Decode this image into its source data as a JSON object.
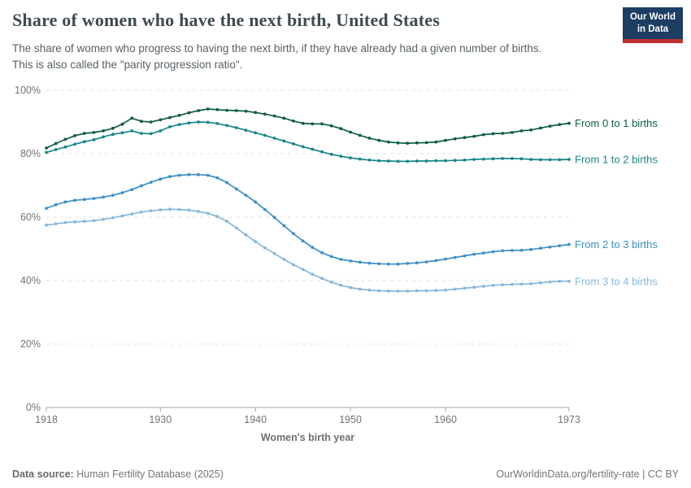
{
  "header": {
    "title": "Share of women who have the next birth, United States",
    "subtitle": "The share of women who progress to having the next birth, if they have already had a given number of births.\nThis is also called the \"parity progression ratio\".",
    "logo_line1": "Our World",
    "logo_line2": "in Data"
  },
  "colors": {
    "logo_bg": "#1d3d63",
    "logo_stripe": "#c2302e",
    "gridline": "#e0e0e0",
    "axis": "#a5a5a5",
    "tick_text": "#737373",
    "axis_title_text": "#6f6f6f"
  },
  "footer": {
    "datasource_label": "Data source:",
    "datasource_value": "Human Fertility Database (2025)",
    "credit": "OurWorldinData.org/fertility-rate | CC BY"
  },
  "chart_data": {
    "type": "line",
    "title": "Share of women who have the next birth, United States",
    "xlabel": "Women's birth year",
    "ylabel": "",
    "xlim": [
      1918,
      1973
    ],
    "ylim": [
      0,
      100
    ],
    "grid": "horizontal-dashed",
    "legend_position": "end-of-line-labels",
    "x_ticks": [
      1918,
      1930,
      1940,
      1950,
      1960,
      1973
    ],
    "y_ticks": [
      0,
      20,
      40,
      60,
      80,
      100
    ],
    "y_tick_suffix": "%",
    "x": [
      1918,
      1919,
      1920,
      1921,
      1922,
      1923,
      1924,
      1925,
      1926,
      1927,
      1928,
      1929,
      1930,
      1931,
      1932,
      1933,
      1934,
      1935,
      1936,
      1937,
      1938,
      1939,
      1940,
      1941,
      1942,
      1943,
      1944,
      1945,
      1946,
      1947,
      1948,
      1949,
      1950,
      1951,
      1952,
      1953,
      1954,
      1955,
      1956,
      1957,
      1958,
      1959,
      1960,
      1961,
      1962,
      1963,
      1964,
      1965,
      1966,
      1967,
      1968,
      1969,
      1970,
      1971,
      1972,
      1973
    ],
    "series": [
      {
        "name": "From 0 to 1 births",
        "color": "#0e5c45",
        "values": [
          81.8,
          83.2,
          84.5,
          85.7,
          86.4,
          86.7,
          87.2,
          88.0,
          89.3,
          91.2,
          90.2,
          90.0,
          90.7,
          91.4,
          92.1,
          92.9,
          93.6,
          94.1,
          93.9,
          93.7,
          93.6,
          93.4,
          93.0,
          92.5,
          91.9,
          91.2,
          90.3,
          89.6,
          89.4,
          89.4,
          88.8,
          87.9,
          86.8,
          85.8,
          84.9,
          84.2,
          83.7,
          83.4,
          83.3,
          83.4,
          83.5,
          83.7,
          84.2,
          84.7,
          85.1,
          85.5,
          86.0,
          86.3,
          86.4,
          86.7,
          87.2,
          87.5,
          88.1,
          88.7,
          89.2,
          89.6
        ]
      },
      {
        "name": "From 1 to 2 births",
        "color": "#17858c",
        "values": [
          80.4,
          81.3,
          82.1,
          83.0,
          83.8,
          84.4,
          85.3,
          86.1,
          86.6,
          87.2,
          86.4,
          86.3,
          87.2,
          88.5,
          89.2,
          89.7,
          90.0,
          89.9,
          89.5,
          88.9,
          88.2,
          87.4,
          86.6,
          85.8,
          84.9,
          84.0,
          83.1,
          82.2,
          81.4,
          80.6,
          79.8,
          79.2,
          78.7,
          78.3,
          78.0,
          77.8,
          77.7,
          77.6,
          77.6,
          77.7,
          77.7,
          77.8,
          77.8,
          77.9,
          78.0,
          78.2,
          78.3,
          78.4,
          78.5,
          78.5,
          78.4,
          78.2,
          78.1,
          78.1,
          78.1,
          78.2
        ]
      },
      {
        "name": "From 2 to 3 births",
        "color": "#3d8fc6",
        "values": [
          62.8,
          63.9,
          64.8,
          65.3,
          65.6,
          65.9,
          66.3,
          66.9,
          67.7,
          68.7,
          69.9,
          71.0,
          72.0,
          72.8,
          73.2,
          73.4,
          73.4,
          73.2,
          72.4,
          70.9,
          68.9,
          66.9,
          64.8,
          62.4,
          59.9,
          57.3,
          54.8,
          52.5,
          50.5,
          48.8,
          47.6,
          46.7,
          46.2,
          45.8,
          45.5,
          45.3,
          45.2,
          45.2,
          45.4,
          45.6,
          45.9,
          46.3,
          46.8,
          47.3,
          47.8,
          48.3,
          48.7,
          49.1,
          49.4,
          49.5,
          49.6,
          49.8,
          50.2,
          50.6,
          51.0,
          51.4
        ]
      },
      {
        "name": "From 3 to 4 births",
        "color": "#86b8dc",
        "values": [
          57.5,
          57.9,
          58.3,
          58.5,
          58.7,
          58.9,
          59.3,
          59.8,
          60.4,
          61.0,
          61.6,
          62.0,
          62.3,
          62.5,
          62.4,
          62.2,
          61.8,
          61.2,
          60.2,
          58.7,
          56.6,
          54.4,
          52.3,
          50.3,
          48.5,
          46.7,
          45.0,
          43.5,
          42.0,
          40.7,
          39.5,
          38.5,
          37.8,
          37.3,
          37.0,
          36.8,
          36.7,
          36.7,
          36.7,
          36.8,
          36.8,
          36.9,
          37.0,
          37.3,
          37.6,
          37.9,
          38.2,
          38.5,
          38.7,
          38.8,
          38.9,
          39.0,
          39.3,
          39.6,
          39.8,
          39.8
        ]
      }
    ]
  }
}
